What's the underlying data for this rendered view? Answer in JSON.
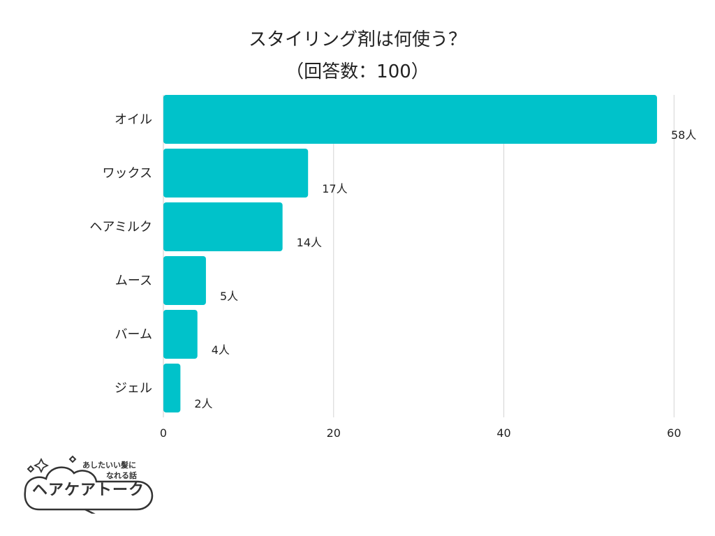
{
  "title_line1": "スタイリング剤は何使う？",
  "title_line2": "（回答数：100）",
  "chart_data": {
    "type": "bar",
    "orientation": "horizontal",
    "categories": [
      "オイル",
      "ワックス",
      "ヘアミルク",
      "ムース",
      "バーム",
      "ジェル"
    ],
    "values": [
      58,
      17,
      14,
      5,
      4,
      2
    ],
    "value_labels": [
      "58人",
      "17人",
      "14人",
      "5人",
      "4人",
      "2人"
    ],
    "xticks": [
      "0",
      "20",
      "40",
      "60"
    ],
    "xlim": [
      0,
      63.5
    ],
    "grid": true,
    "bar_color": "#00c2ca"
  },
  "logo": {
    "tagline_line1": "あしたいい髪に",
    "tagline_line2": "なれる話",
    "name": "ヘアケアトーク"
  }
}
